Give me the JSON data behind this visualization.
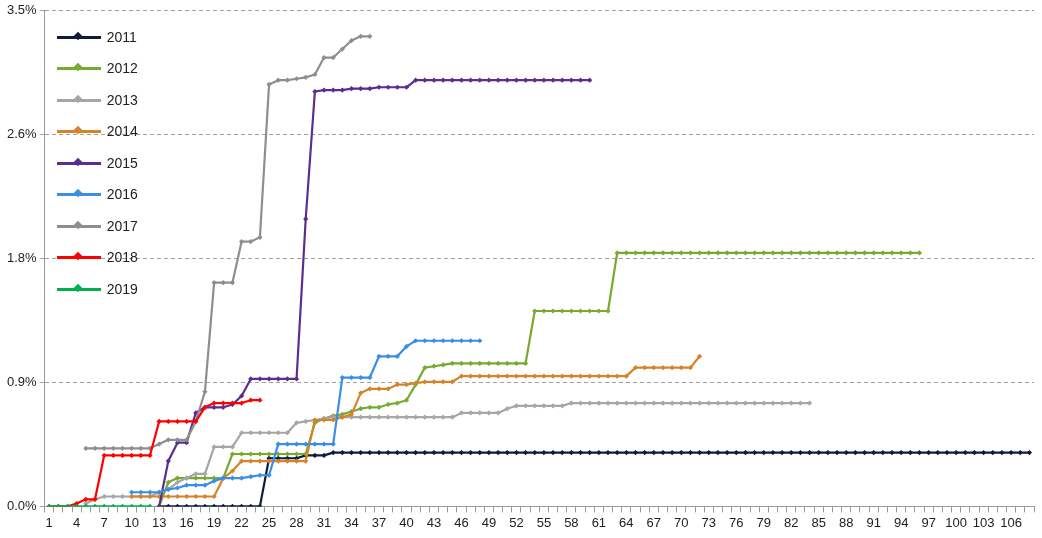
{
  "chart_data": {
    "type": "line",
    "categories": [
      "1",
      null,
      null,
      "4",
      null,
      null,
      "7",
      null,
      null,
      "10",
      null,
      null,
      "13",
      null,
      null,
      "16",
      null,
      null,
      "19",
      null,
      null,
      "22",
      null,
      null,
      "25",
      null,
      null,
      "28",
      null,
      null,
      "31",
      null,
      null,
      "34",
      null,
      null,
      "37",
      null,
      null,
      "40",
      null,
      null,
      "43",
      null,
      null,
      "46",
      null,
      null,
      "49",
      null,
      null,
      "52",
      null,
      null,
      "55",
      null,
      null,
      "58",
      null,
      null,
      "61",
      null,
      null,
      "64",
      null,
      null,
      "67",
      null,
      null,
      "70",
      null,
      null,
      "73",
      null,
      null,
      "76",
      null,
      null,
      "79",
      null,
      null,
      "82",
      null,
      null,
      "85",
      null,
      null,
      "88",
      null,
      null,
      "91",
      null,
      null,
      "94",
      null,
      null,
      "97",
      null,
      null,
      "100",
      null,
      null,
      "103",
      null,
      null,
      "106",
      null,
      null
    ],
    "ylim": [
      0,
      3.5
    ],
    "yticks": [
      {
        "value": 0,
        "label": "0.0%"
      },
      {
        "value": 0.875,
        "label": "0.9%"
      },
      {
        "value": 1.75,
        "label": "1.8%"
      },
      {
        "value": 2.625,
        "label": "2.6%"
      },
      {
        "value": 3.5,
        "label": "3.5%"
      }
    ],
    "grid": "y",
    "legend": "top left",
    "marker": "diamond",
    "line_style": "solid",
    "series": [
      {
        "name": "2011",
        "color": "#0e1b3d",
        "values": [
          null,
          null,
          null,
          null,
          null,
          null,
          null,
          null,
          null,
          null,
          null,
          null,
          0,
          0,
          0,
          0,
          0,
          0,
          0,
          0,
          0,
          0,
          0,
          0,
          0.34,
          0.34,
          0.34,
          0.34,
          0.36,
          0.36,
          0.36,
          0.38,
          0.38,
          0.38,
          0.38,
          0.38,
          0.38,
          0.38,
          0.38,
          0.38,
          0.38,
          0.38,
          0.38,
          0.38,
          0.38,
          0.38,
          0.38,
          0.38,
          0.38,
          0.38,
          0.38,
          0.38,
          0.38,
          0.38,
          0.38,
          0.38,
          0.38,
          0.38,
          0.38,
          0.38,
          0.38,
          0.38,
          0.38,
          0.38,
          0.38,
          0.38,
          0.38,
          0.38,
          0.38,
          0.38,
          0.38,
          0.38,
          0.38,
          0.38,
          0.38,
          0.38,
          0.38,
          0.38,
          0.38,
          0.38,
          0.38,
          0.38,
          0.38,
          0.38,
          0.38,
          0.38,
          0.38,
          0.38,
          0.38,
          0.38,
          0.38,
          0.38,
          0.38,
          0.38,
          0.38,
          0.38,
          0.38,
          0.38,
          0.38,
          0.38,
          0.38,
          0.38,
          0.38,
          0.38,
          0.38,
          0.38,
          0.38,
          0.38
        ]
      },
      {
        "name": "2012",
        "color": "#77ab2f",
        "values": [
          null,
          null,
          null,
          null,
          null,
          null,
          null,
          null,
          null,
          null,
          null,
          null,
          0,
          0.17,
          0.2,
          0.2,
          0.2,
          0.2,
          0.2,
          0.2,
          0.37,
          0.37,
          0.37,
          0.37,
          0.37,
          0.37,
          0.37,
          0.37,
          0.37,
          0.59,
          0.62,
          0.64,
          0.65,
          0.67,
          0.69,
          0.7,
          0.7,
          0.72,
          0.73,
          0.75,
          0.86,
          0.98,
          0.99,
          1.0,
          1.01,
          1.01,
          1.01,
          1.01,
          1.01,
          1.01,
          1.01,
          1.01,
          1.01,
          1.38,
          1.38,
          1.38,
          1.38,
          1.38,
          1.38,
          1.38,
          1.38,
          1.38,
          1.79,
          1.79,
          1.79,
          1.79,
          1.79,
          1.79,
          1.79,
          1.79,
          1.79,
          1.79,
          1.79,
          1.79,
          1.79,
          1.79,
          1.79,
          1.79,
          1.79,
          1.79,
          1.79,
          1.79,
          1.79,
          1.79,
          1.79,
          1.79,
          1.79,
          1.79,
          1.79,
          1.79,
          1.79,
          1.79,
          1.79,
          1.79,
          1.79,
          1.79,
          null,
          null,
          null,
          null,
          null,
          null,
          null,
          null,
          null,
          null,
          null,
          null
        ]
      },
      {
        "name": "2013",
        "color": "#a6a6a6",
        "values": [
          null,
          null,
          null,
          null,
          0.02,
          0.05,
          0.07,
          0.07,
          0.07,
          0.07,
          0.07,
          0.07,
          0.1,
          0.12,
          0.17,
          0.2,
          0.23,
          0.23,
          0.42,
          0.42,
          0.42,
          0.52,
          0.52,
          0.52,
          0.52,
          0.52,
          0.52,
          0.59,
          0.6,
          0.61,
          0.62,
          0.63,
          0.63,
          0.63,
          0.63,
          0.63,
          0.63,
          0.63,
          0.63,
          0.63,
          0.63,
          0.63,
          0.63,
          0.63,
          0.63,
          0.66,
          0.66,
          0.66,
          0.66,
          0.66,
          0.69,
          0.71,
          0.71,
          0.71,
          0.71,
          0.71,
          0.71,
          0.73,
          0.73,
          0.73,
          0.73,
          0.73,
          0.73,
          0.73,
          0.73,
          0.73,
          0.73,
          0.73,
          0.73,
          0.73,
          0.73,
          0.73,
          0.73,
          0.73,
          0.73,
          0.73,
          0.73,
          0.73,
          0.73,
          0.73,
          0.73,
          0.73,
          0.73,
          0.73,
          null,
          null,
          null,
          null,
          null,
          null,
          null,
          null,
          null,
          null,
          null,
          null,
          null,
          null,
          null,
          null,
          null,
          null,
          null,
          null,
          null,
          null,
          null,
          null
        ]
      },
      {
        "name": "2014",
        "color": "#d7832a",
        "values": [
          null,
          null,
          null,
          null,
          null,
          null,
          null,
          null,
          null,
          0.07,
          0.07,
          0.07,
          0.07,
          0.07,
          0.07,
          0.07,
          0.07,
          0.07,
          0.07,
          0.2,
          0.25,
          0.32,
          0.32,
          0.32,
          0.32,
          0.32,
          0.32,
          0.32,
          0.32,
          0.61,
          0.61,
          0.61,
          0.63,
          0.65,
          0.8,
          0.83,
          0.83,
          0.83,
          0.86,
          0.86,
          0.87,
          0.88,
          0.88,
          0.88,
          0.88,
          0.92,
          0.92,
          0.92,
          0.92,
          0.92,
          0.92,
          0.92,
          0.92,
          0.92,
          0.92,
          0.92,
          0.92,
          0.92,
          0.92,
          0.92,
          0.92,
          0.92,
          0.92,
          0.92,
          0.98,
          0.98,
          0.98,
          0.98,
          0.98,
          0.98,
          0.98,
          1.06,
          null,
          null,
          null,
          null,
          null,
          null,
          null,
          null,
          null,
          null,
          null,
          null,
          null,
          null,
          null,
          null,
          null,
          null,
          null,
          null,
          null,
          null,
          null,
          null,
          null,
          null,
          null,
          null,
          null,
          null,
          null,
          null,
          null,
          null,
          null,
          null
        ]
      },
      {
        "name": "2015",
        "color": "#5a2d8f",
        "values": [
          null,
          null,
          null,
          null,
          null,
          null,
          null,
          null,
          null,
          null,
          null,
          null,
          0,
          0.32,
          0.45,
          0.45,
          0.66,
          0.7,
          0.7,
          0.7,
          0.72,
          0.78,
          0.9,
          0.9,
          0.9,
          0.9,
          0.9,
          0.9,
          2.03,
          2.93,
          2.94,
          2.94,
          2.94,
          2.95,
          2.95,
          2.95,
          2.96,
          2.96,
          2.96,
          2.96,
          3.01,
          3.01,
          3.01,
          3.01,
          3.01,
          3.01,
          3.01,
          3.01,
          3.01,
          3.01,
          3.01,
          3.01,
          3.01,
          3.01,
          3.01,
          3.01,
          3.01,
          3.01,
          3.01,
          3.01,
          null,
          null,
          null,
          null,
          null,
          null,
          null,
          null,
          null,
          null,
          null,
          null,
          null,
          null,
          null,
          null,
          null,
          null,
          null,
          null,
          null,
          null,
          null,
          null,
          null,
          null,
          null,
          null,
          null,
          null,
          null,
          null,
          null,
          null,
          null,
          null,
          null,
          null,
          null,
          null,
          null,
          null,
          null,
          null,
          null,
          null,
          null,
          null
        ]
      },
      {
        "name": "2016",
        "color": "#3a8ee6",
        "values": [
          null,
          null,
          null,
          null,
          null,
          null,
          null,
          null,
          null,
          0.1,
          0.1,
          0.1,
          0.1,
          0.12,
          0.13,
          0.15,
          0.15,
          0.15,
          0.18,
          0.2,
          0.2,
          0.2,
          0.21,
          0.22,
          0.22,
          0.44,
          0.44,
          0.44,
          0.44,
          0.44,
          0.44,
          0.44,
          0.91,
          0.91,
          0.91,
          0.91,
          1.06,
          1.06,
          1.06,
          1.13,
          1.17,
          1.17,
          1.17,
          1.17,
          1.17,
          1.17,
          1.17,
          1.17,
          null,
          null,
          null,
          null,
          null,
          null,
          null,
          null,
          null,
          null,
          null,
          null,
          null,
          null,
          null,
          null,
          null,
          null,
          null,
          null,
          null,
          null,
          null,
          null,
          null,
          null,
          null,
          null,
          null,
          null,
          null,
          null,
          null,
          null,
          null,
          null,
          null,
          null,
          null,
          null,
          null,
          null,
          null,
          null,
          null,
          null,
          null,
          null,
          null,
          null,
          null,
          null,
          null,
          null,
          null,
          null,
          null,
          null,
          null,
          null
        ]
      },
      {
        "name": "2017",
        "color": "#8e8e8e",
        "values": [
          null,
          null,
          null,
          null,
          0.41,
          0.41,
          0.41,
          0.41,
          0.41,
          0.41,
          0.41,
          0.41,
          0.44,
          0.47,
          0.47,
          0.47,
          0.6,
          0.81,
          1.58,
          1.58,
          1.58,
          1.87,
          1.87,
          1.9,
          2.98,
          3.01,
          3.01,
          3.02,
          3.03,
          3.05,
          3.17,
          3.17,
          3.23,
          3.29,
          3.32,
          3.32,
          null,
          null,
          null,
          null,
          null,
          null,
          null,
          null,
          null,
          null,
          null,
          null,
          null,
          null,
          null,
          null,
          null,
          null,
          null,
          null,
          null,
          null,
          null,
          null,
          null,
          null,
          null,
          null,
          null,
          null,
          null,
          null,
          null,
          null,
          null,
          null,
          null,
          null,
          null,
          null,
          null,
          null,
          null,
          null,
          null,
          null,
          null,
          null,
          null,
          null,
          null,
          null,
          null,
          null,
          null,
          null,
          null,
          null,
          null,
          null,
          null,
          null,
          null,
          null,
          null,
          null,
          null,
          null,
          null,
          null,
          null,
          null
        ]
      },
      {
        "name": "2018",
        "color": "#ff0000",
        "values": [
          0,
          0,
          0,
          0.02,
          0.05,
          0.05,
          0.36,
          0.36,
          0.36,
          0.36,
          0.36,
          0.36,
          0.6,
          0.6,
          0.6,
          0.6,
          0.6,
          0.7,
          0.73,
          0.73,
          0.73,
          0.73,
          0.75,
          0.75,
          null,
          null,
          null,
          null,
          null,
          null,
          null,
          null,
          null,
          null,
          null,
          null,
          null,
          null,
          null,
          null,
          null,
          null,
          null,
          null,
          null,
          null,
          null,
          null,
          null,
          null,
          null,
          null,
          null,
          null,
          null,
          null,
          null,
          null,
          null,
          null,
          null,
          null,
          null,
          null,
          null,
          null,
          null,
          null,
          null,
          null,
          null,
          null,
          null,
          null,
          null,
          null,
          null,
          null,
          null,
          null,
          null,
          null,
          null,
          null,
          null,
          null,
          null,
          null,
          null,
          null,
          null,
          null,
          null,
          null,
          null,
          null,
          null,
          null,
          null,
          null,
          null,
          null,
          null,
          null,
          null,
          null,
          null,
          null
        ]
      },
      {
        "name": "2019",
        "color": "#00b050",
        "values": [
          0,
          0,
          0,
          0,
          0,
          0,
          0,
          0,
          0,
          0,
          0,
          0,
          null,
          null,
          null,
          null,
          null,
          null,
          null,
          null,
          null,
          null,
          null,
          null,
          null,
          null,
          null,
          null,
          null,
          null,
          null,
          null,
          null,
          null,
          null,
          null,
          null,
          null,
          null,
          null,
          null,
          null,
          null,
          null,
          null,
          null,
          null,
          null,
          null,
          null,
          null,
          null,
          null,
          null,
          null,
          null,
          null,
          null,
          null,
          null,
          null,
          null,
          null,
          null,
          null,
          null,
          null,
          null,
          null,
          null,
          null,
          null,
          null,
          null,
          null,
          null,
          null,
          null,
          null,
          null,
          null,
          null,
          null,
          null,
          null,
          null,
          null,
          null,
          null,
          null,
          null,
          null,
          null,
          null,
          null,
          null,
          null,
          null,
          null,
          null,
          null,
          null,
          null,
          null,
          null,
          null,
          null,
          null
        ]
      }
    ]
  }
}
